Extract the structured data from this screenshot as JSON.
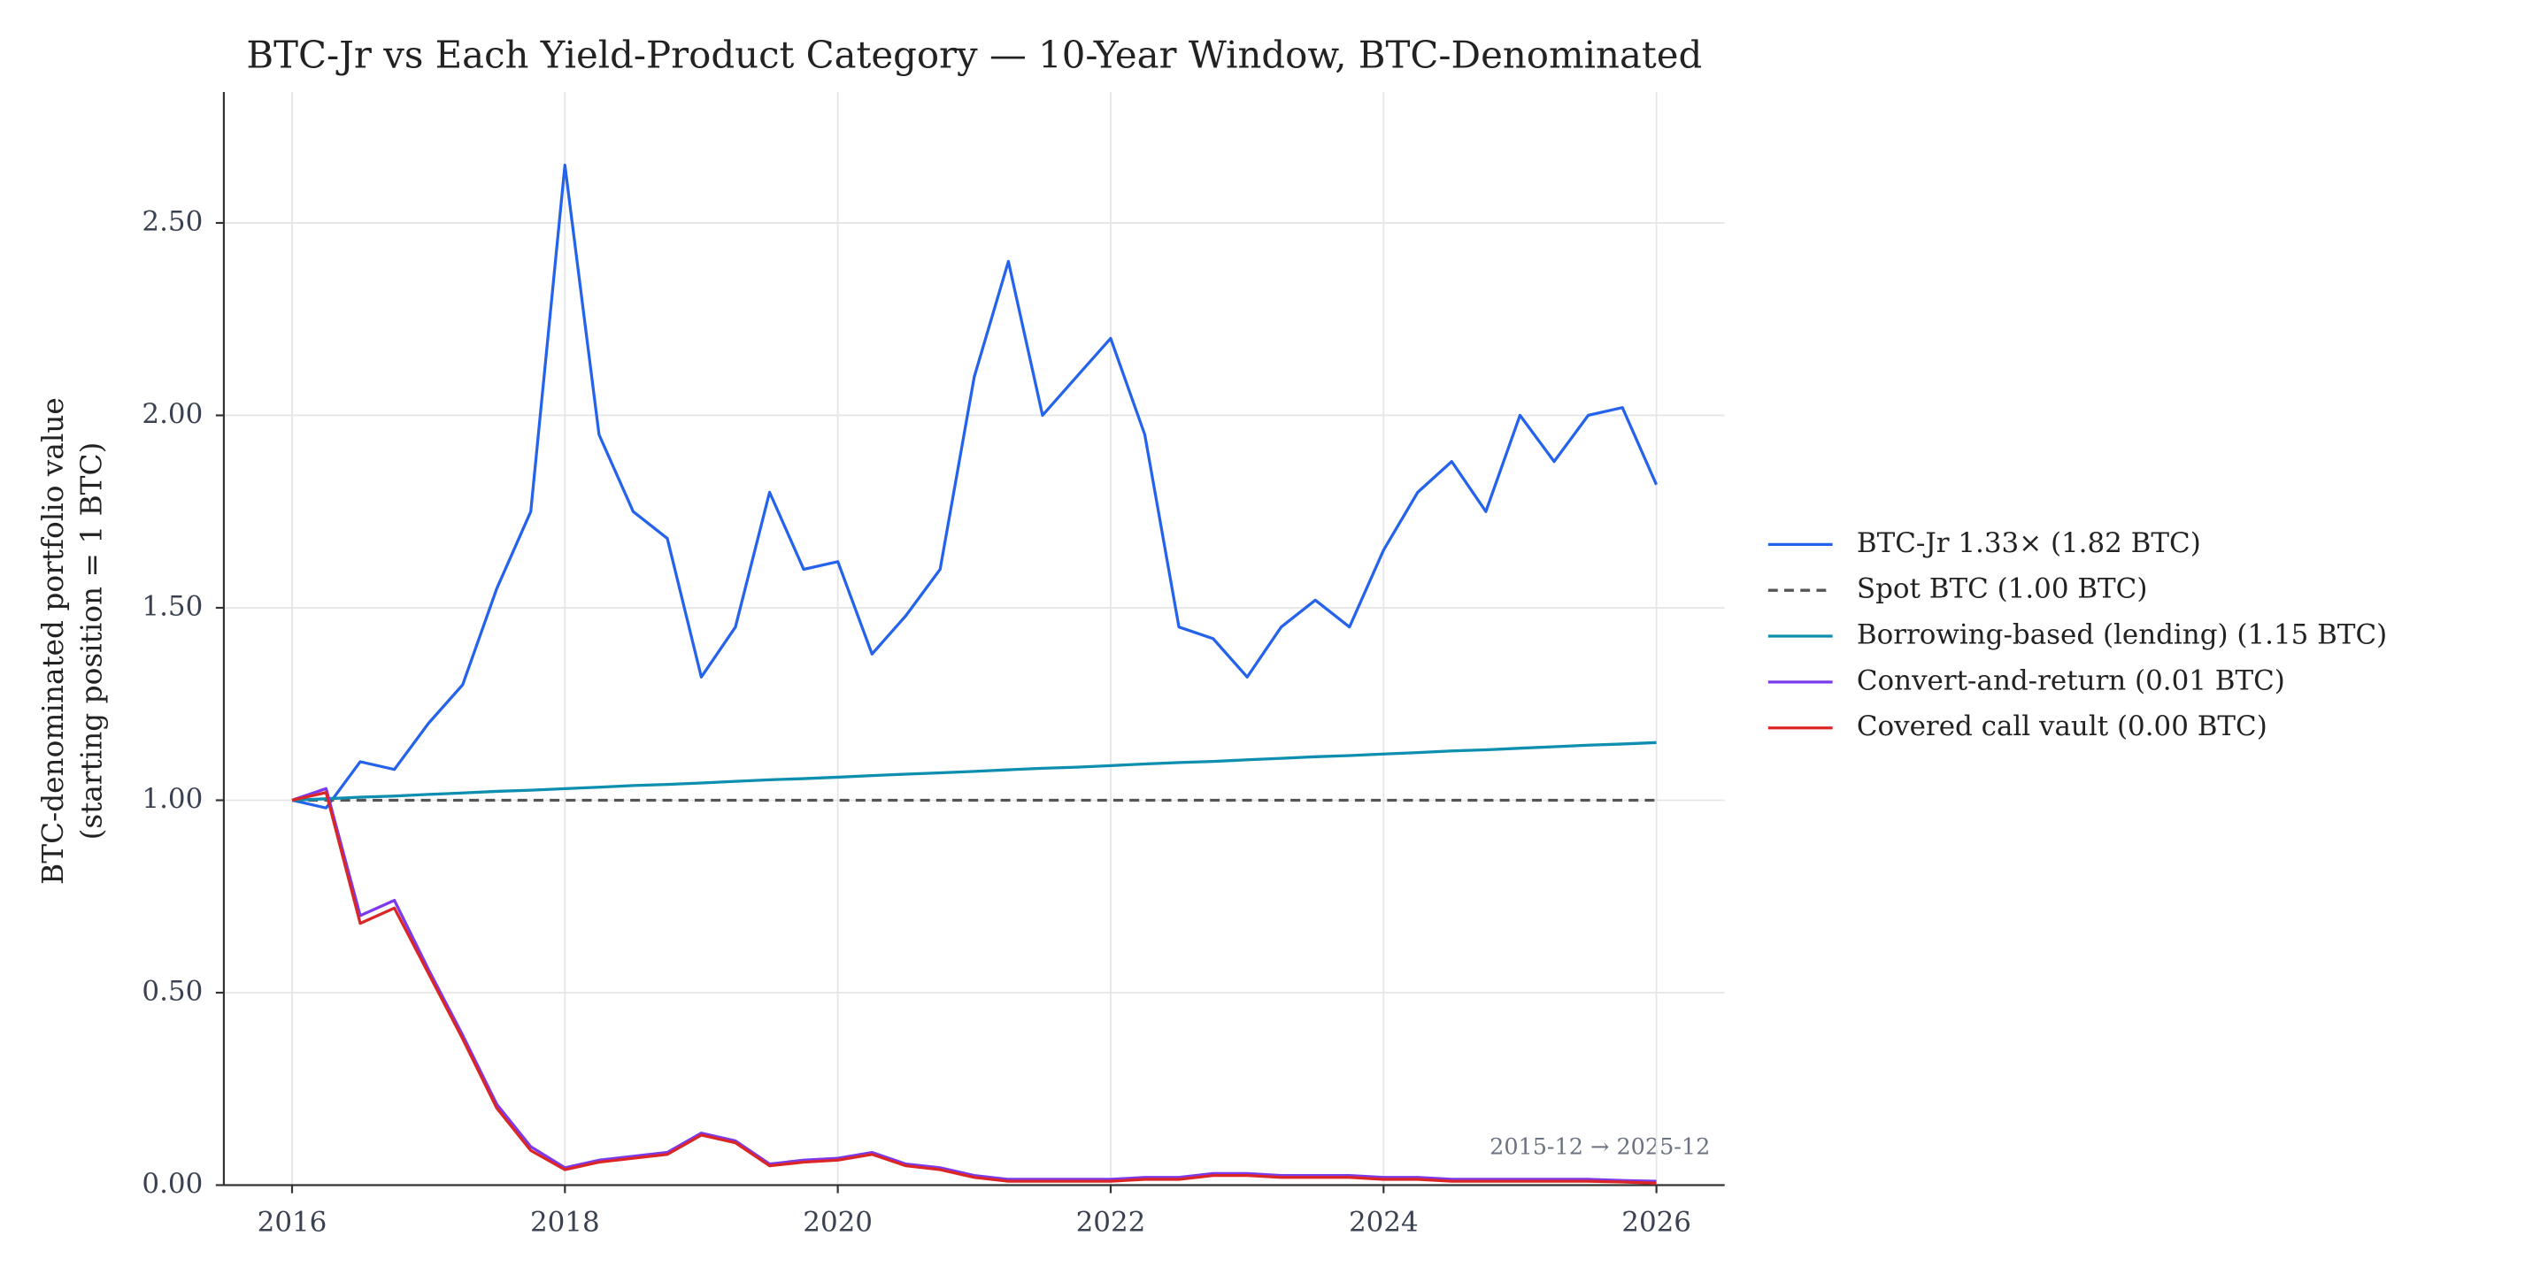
{
  "chart_data": {
    "type": "line",
    "title": "BTC-Jr vs Each Yield-Product Category — 10-Year Window, BTC-Denominated",
    "ylabel": [
      "BTC-denominated portfolio value",
      "(starting position = 1 BTC)"
    ],
    "annotation": "2015-12 → 2025-12",
    "x": [
      2016,
      2016.25,
      2016.5,
      2016.75,
      2017,
      2017.25,
      2017.5,
      2017.75,
      2018,
      2018.25,
      2018.5,
      2018.75,
      2019,
      2019.25,
      2019.5,
      2019.75,
      2020,
      2020.25,
      2020.5,
      2020.75,
      2021,
      2021.25,
      2021.5,
      2021.75,
      2022,
      2022.25,
      2022.5,
      2022.75,
      2023,
      2023.25,
      2023.5,
      2023.75,
      2024,
      2024.25,
      2024.5,
      2024.75,
      2025,
      2025.25,
      2025.5,
      2025.75,
      2026
    ],
    "series": [
      {
        "name": "BTC-Jr 1.33×  (1.82 BTC)",
        "color": "#2563eb",
        "style": "solid",
        "values": [
          1.0,
          0.98,
          1.1,
          1.08,
          1.2,
          1.3,
          1.55,
          1.75,
          2.65,
          1.95,
          1.75,
          1.68,
          1.32,
          1.45,
          1.8,
          1.6,
          1.62,
          1.38,
          1.48,
          1.6,
          2.1,
          2.4,
          2.0,
          2.1,
          2.2,
          1.95,
          1.45,
          1.42,
          1.32,
          1.45,
          1.52,
          1.45,
          1.65,
          1.8,
          1.88,
          1.75,
          2.0,
          1.88,
          2.0,
          2.02,
          1.82
        ]
      },
      {
        "name": "Spot BTC  (1.00 BTC)",
        "color": "#555555",
        "style": "dashed",
        "values": [
          1,
          1,
          1,
          1,
          1,
          1,
          1,
          1,
          1,
          1,
          1,
          1,
          1,
          1,
          1,
          1,
          1,
          1,
          1,
          1,
          1,
          1,
          1,
          1,
          1,
          1,
          1,
          1,
          1,
          1,
          1,
          1,
          1,
          1,
          1,
          1,
          1,
          1,
          1,
          1,
          1
        ]
      },
      {
        "name": "Borrowing-based (lending)  (1.15 BTC)",
        "color": "#0e8fb0",
        "style": "solid",
        "values": [
          1.0,
          1.004,
          1.008,
          1.011,
          1.015,
          1.019,
          1.023,
          1.026,
          1.03,
          1.034,
          1.038,
          1.041,
          1.045,
          1.049,
          1.053,
          1.056,
          1.06,
          1.064,
          1.068,
          1.071,
          1.075,
          1.079,
          1.083,
          1.086,
          1.09,
          1.094,
          1.098,
          1.101,
          1.105,
          1.109,
          1.113,
          1.116,
          1.12,
          1.124,
          1.128,
          1.131,
          1.135,
          1.139,
          1.143,
          1.146,
          1.15
        ]
      },
      {
        "name": "Convert-and-return  (0.01 BTC)",
        "color": "#7c3aed",
        "style": "solid",
        "values": [
          1.0,
          1.03,
          0.7,
          0.74,
          0.56,
          0.39,
          0.21,
          0.1,
          0.045,
          0.065,
          0.075,
          0.085,
          0.135,
          0.115,
          0.055,
          0.065,
          0.07,
          0.085,
          0.055,
          0.045,
          0.025,
          0.015,
          0.015,
          0.015,
          0.015,
          0.02,
          0.02,
          0.03,
          0.03,
          0.025,
          0.025,
          0.025,
          0.02,
          0.02,
          0.015,
          0.015,
          0.015,
          0.015,
          0.015,
          0.012,
          0.01
        ]
      },
      {
        "name": "Covered call vault  (0.00 BTC)",
        "color": "#dc2626",
        "style": "solid",
        "values": [
          1.0,
          1.02,
          0.68,
          0.72,
          0.55,
          0.38,
          0.2,
          0.09,
          0.04,
          0.06,
          0.07,
          0.08,
          0.13,
          0.11,
          0.05,
          0.06,
          0.065,
          0.08,
          0.05,
          0.04,
          0.02,
          0.01,
          0.01,
          0.01,
          0.01,
          0.015,
          0.015,
          0.025,
          0.025,
          0.02,
          0.02,
          0.02,
          0.015,
          0.015,
          0.01,
          0.01,
          0.01,
          0.01,
          0.01,
          0.008,
          0.005
        ]
      }
    ],
    "xlim": [
      2015.5,
      2026.5
    ],
    "xticks": [
      2016,
      2018,
      2020,
      2022,
      2024,
      2026
    ],
    "ylim": [
      0,
      2.84
    ],
    "yticks": [
      {
        "value": 0,
        "label": "0.00"
      },
      {
        "value": 0.5,
        "label": "0.50"
      },
      {
        "value": 1,
        "label": "1.00"
      },
      {
        "value": 1.5,
        "label": "1.50"
      },
      {
        "value": 2,
        "label": "2.00"
      },
      {
        "value": 2.5,
        "label": "2.50"
      }
    ],
    "grid": true,
    "legend": "right"
  }
}
